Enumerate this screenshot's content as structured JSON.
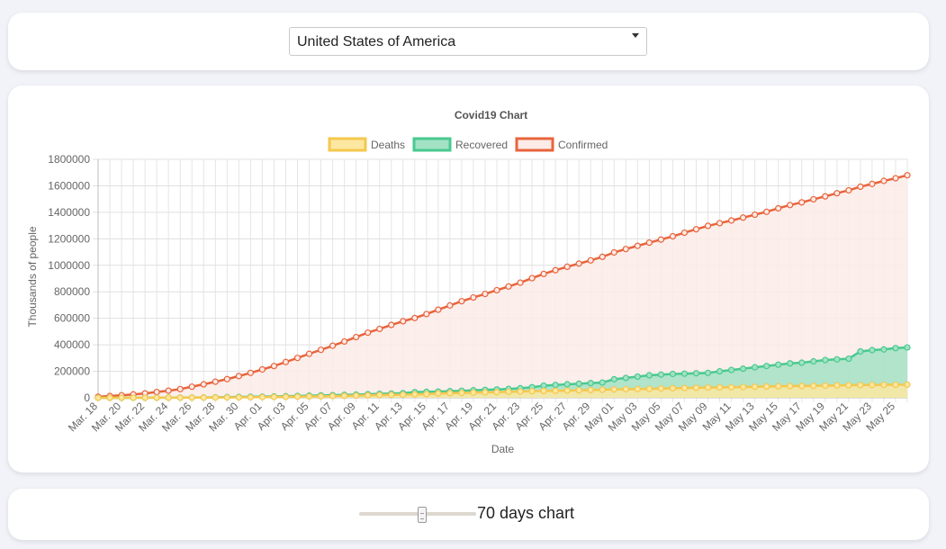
{
  "selector": {
    "selected": "United States of America"
  },
  "slider": {
    "value": 70,
    "min": 0,
    "max": 130,
    "label": "70 days chart"
  },
  "colors": {
    "deaths_fill": "#fde7a1",
    "deaths_line": "#f4c84e",
    "recovered_fill": "#a3e2c4",
    "recovered_line": "#49c990",
    "confirmed_fill": "#fcebe7",
    "confirmed_line": "#e8643c"
  },
  "chart_data": {
    "type": "area",
    "title": "Covid19 Chart",
    "xlabel": "Date",
    "ylabel": "Thousands of people",
    "ylim": [
      0,
      1800000
    ],
    "yticks": [
      0,
      200000,
      400000,
      600000,
      800000,
      1000000,
      1200000,
      1400000,
      1600000,
      1800000
    ],
    "ytick_labels": [
      "0",
      "200000",
      "400000",
      "600000",
      "800000",
      "1000000",
      "1200000",
      "1400000",
      "1600000",
      "1800000"
    ],
    "grid": true,
    "legend_position": "top-center",
    "x": [
      "Mar. 18",
      "Mar. 19",
      "Mar. 20",
      "Mar. 21",
      "Mar. 22",
      "Mar. 23",
      "Mar. 24",
      "Mar. 25",
      "Mar. 26",
      "Mar. 27",
      "Mar. 28",
      "Mar. 29",
      "Mar. 30",
      "Mar. 31",
      "Apr. 01",
      "Apr. 02",
      "Apr. 03",
      "Apr. 04",
      "Apr. 05",
      "Apr. 06",
      "Apr. 07",
      "Apr. 08",
      "Apr. 09",
      "Apr. 10",
      "Apr. 11",
      "Apr. 12",
      "Apr. 13",
      "Apr. 14",
      "Apr. 15",
      "Apr. 16",
      "Apr. 17",
      "Apr. 18",
      "Apr. 19",
      "Apr. 20",
      "Apr. 21",
      "Apr. 22",
      "Apr. 23",
      "Apr. 24",
      "Apr. 25",
      "Apr. 26",
      "Apr. 27",
      "Apr. 28",
      "Apr. 29",
      "Apr. 30",
      "May 01",
      "May 02",
      "May 03",
      "May 04",
      "May 05",
      "May 06",
      "May 07",
      "May 08",
      "May 09",
      "May 10",
      "May 11",
      "May 12",
      "May 13",
      "May 14",
      "May 15",
      "May 16",
      "May 17",
      "May 18",
      "May 19",
      "May 20",
      "May 21",
      "May 22",
      "May 23",
      "May 24",
      "May 25",
      "May 26"
    ],
    "x_tick_labels": [
      "Mar. 18",
      "Mar. 20",
      "Mar. 22",
      "Mar. 24",
      "Mar. 26",
      "Mar. 28",
      "Mar. 30",
      "Apr. 01",
      "Apr. 03",
      "Apr. 05",
      "Apr. 07",
      "Apr. 09",
      "Apr. 11",
      "Apr. 13",
      "Apr. 15",
      "Apr. 17",
      "Apr. 19",
      "Apr. 21",
      "Apr. 23",
      "Apr. 25",
      "Apr. 27",
      "Apr. 29",
      "May 01",
      "May 03",
      "May 05",
      "May 07",
      "May 09",
      "May 11",
      "May 13",
      "May 15",
      "May 17",
      "May 19",
      "May 21",
      "May 23",
      "May 25"
    ],
    "series": [
      {
        "name": "Deaths",
        "values": [
          150,
          200,
          260,
          340,
          420,
          550,
          720,
          950,
          1250,
          1600,
          2050,
          2500,
          3100,
          3900,
          5000,
          6100,
          7300,
          8500,
          9800,
          11000,
          12800,
          14700,
          16500,
          18500,
          20500,
          22000,
          23600,
          25800,
          28300,
          32900,
          35000,
          37200,
          39000,
          40700,
          42600,
          45300,
          47500,
          49700,
          51600,
          53000,
          54300,
          56400,
          58700,
          61000,
          62900,
          64800,
          66200,
          67500,
          69700,
          72100,
          74000,
          75700,
          77200,
          78400,
          79800,
          81500,
          83300,
          85100,
          86700,
          88000,
          89000,
          90400,
          91900,
          93400,
          94700,
          96000,
          97100,
          97700,
          98200,
          99300
        ]
      },
      {
        "name": "Recovered",
        "values": [
          100,
          150,
          200,
          350,
          500,
          800,
          1000,
          1300,
          1700,
          2300,
          3500,
          5000,
          6500,
          8000,
          9000,
          10000,
          12000,
          14000,
          16000,
          18000,
          20000,
          22000,
          24000,
          27000,
          30000,
          32000,
          35000,
          43000,
          45000,
          47000,
          50000,
          53000,
          57000,
          60000,
          63000,
          67000,
          72000,
          80000,
          92000,
          97000,
          102000,
          106000,
          111000,
          115000,
          140000,
          150000,
          160000,
          170000,
          175000,
          180000,
          182000,
          185000,
          188000,
          200000,
          210000,
          220000,
          230000,
          240000,
          250000,
          260000,
          265000,
          275000,
          285000,
          290000,
          295000,
          350000,
          360000,
          365000,
          375000,
          380000
        ]
      },
      {
        "name": "Confirmed",
        "values": [
          7800,
          13700,
          19100,
          25500,
          33300,
          43800,
          53700,
          65800,
          83800,
          101700,
          121500,
          140900,
          163800,
          188200,
          214000,
          240000,
          270000,
          301000,
          332000,
          362000,
          393000,
          425000,
          458000,
          492000,
          520000,
          550000,
          578000,
          602000,
          632000,
          665000,
          697000,
          729000,
          757000,
          784000,
          812000,
          840000,
          869000,
          903000,
          935000,
          963000,
          989000,
          1013000,
          1037000,
          1064000,
          1097000,
          1123000,
          1147000,
          1171000,
          1194000,
          1219000,
          1246000,
          1272000,
          1298000,
          1318000,
          1338000,
          1360000,
          1382000,
          1404000,
          1430000,
          1455000,
          1475000,
          1498000,
          1520000,
          1544000,
          1566000,
          1593000,
          1614000,
          1637000,
          1657000,
          1680000
        ]
      }
    ]
  }
}
